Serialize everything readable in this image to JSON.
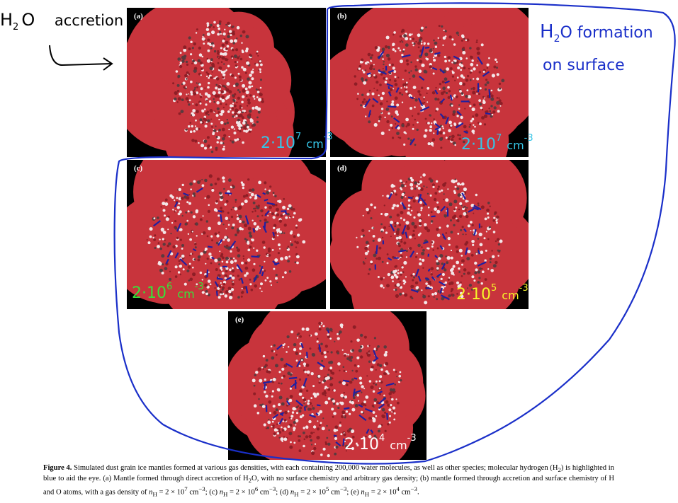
{
  "annotations": {
    "left_note": {
      "molecule": "H",
      "subscript": "2",
      "tail": "O",
      "word": "accretion"
    },
    "right_note": {
      "line1_a": "H",
      "line1_sub": "2",
      "line1_b": "O formation",
      "line2": "on surface"
    }
  },
  "panels": [
    {
      "label": "(a)",
      "density": {
        "base": "2·10",
        "exp": "7",
        "unit": "cm",
        "unit_exp": "-3"
      },
      "density_color": "#35c4e6"
    },
    {
      "label": "(b)",
      "density": {
        "base": "2·10",
        "exp": "7",
        "unit": "cm",
        "unit_exp": "-3"
      },
      "density_color": "#35c4e6"
    },
    {
      "label": "(c)",
      "density": {
        "base": "2·10",
        "exp": "6",
        "unit": "cm",
        "unit_exp": "-3"
      },
      "density_color": "#39e03a"
    },
    {
      "label": "(d)",
      "density": {
        "base": "2·10",
        "exp": "5",
        "unit": "cm",
        "unit_exp": "-3"
      },
      "density_color": "#f5f52a"
    },
    {
      "label": "(e)",
      "density": {
        "base": "2·10",
        "exp": "4",
        "unit": "cm",
        "unit_exp": "-3"
      },
      "density_color": "#ffffff"
    }
  ],
  "caption": {
    "label": "Figure 4.",
    "text_1": " Simulated dust grain ice mantles formed at various gas densities, with each containing 200,000 water molecules, as well as other species; molecular hydrogen (H",
    "sub_1": "2",
    "text_2": ") is highlighted in blue to aid the eye. (a) Mantle formed through direct accretion of H",
    "sub_2": "2",
    "text_3": "O, with no surface chemistry and arbitrary gas density; (b) mantle formed through accretion and surface chemistry of H and O atoms, with a gas density of ",
    "nh_b": "n",
    "nh_b_sub": "H",
    "val_b": " = 2 × 10",
    "exp_b": "7",
    "unit_b": " cm",
    "uexp_b": "−3",
    "sep_c": "; (c) ",
    "nh_c": "n",
    "nh_c_sub": "H",
    "val_c": " = 2 × 10",
    "exp_c": "6",
    "unit_c": " cm",
    "uexp_c": "−3",
    "sep_d": "; (d) ",
    "nh_d": "n",
    "nh_d_sub": "H",
    "val_d": " = 2 × 10",
    "exp_d": "5",
    "unit_d": " cm",
    "uexp_d": "−3",
    "sep_e": "; (e) ",
    "nh_e": "n",
    "nh_e_sub": "H",
    "val_e": " = 2 × 10",
    "exp_e": "4",
    "unit_e": " cm",
    "uexp_e": "−3",
    "end": "."
  },
  "colors": {
    "ink_blue": "#1a2fc9",
    "ice_red": "#c8343c",
    "ice_white": "#f3e6e8",
    "h2_blue": "#2020a0"
  }
}
